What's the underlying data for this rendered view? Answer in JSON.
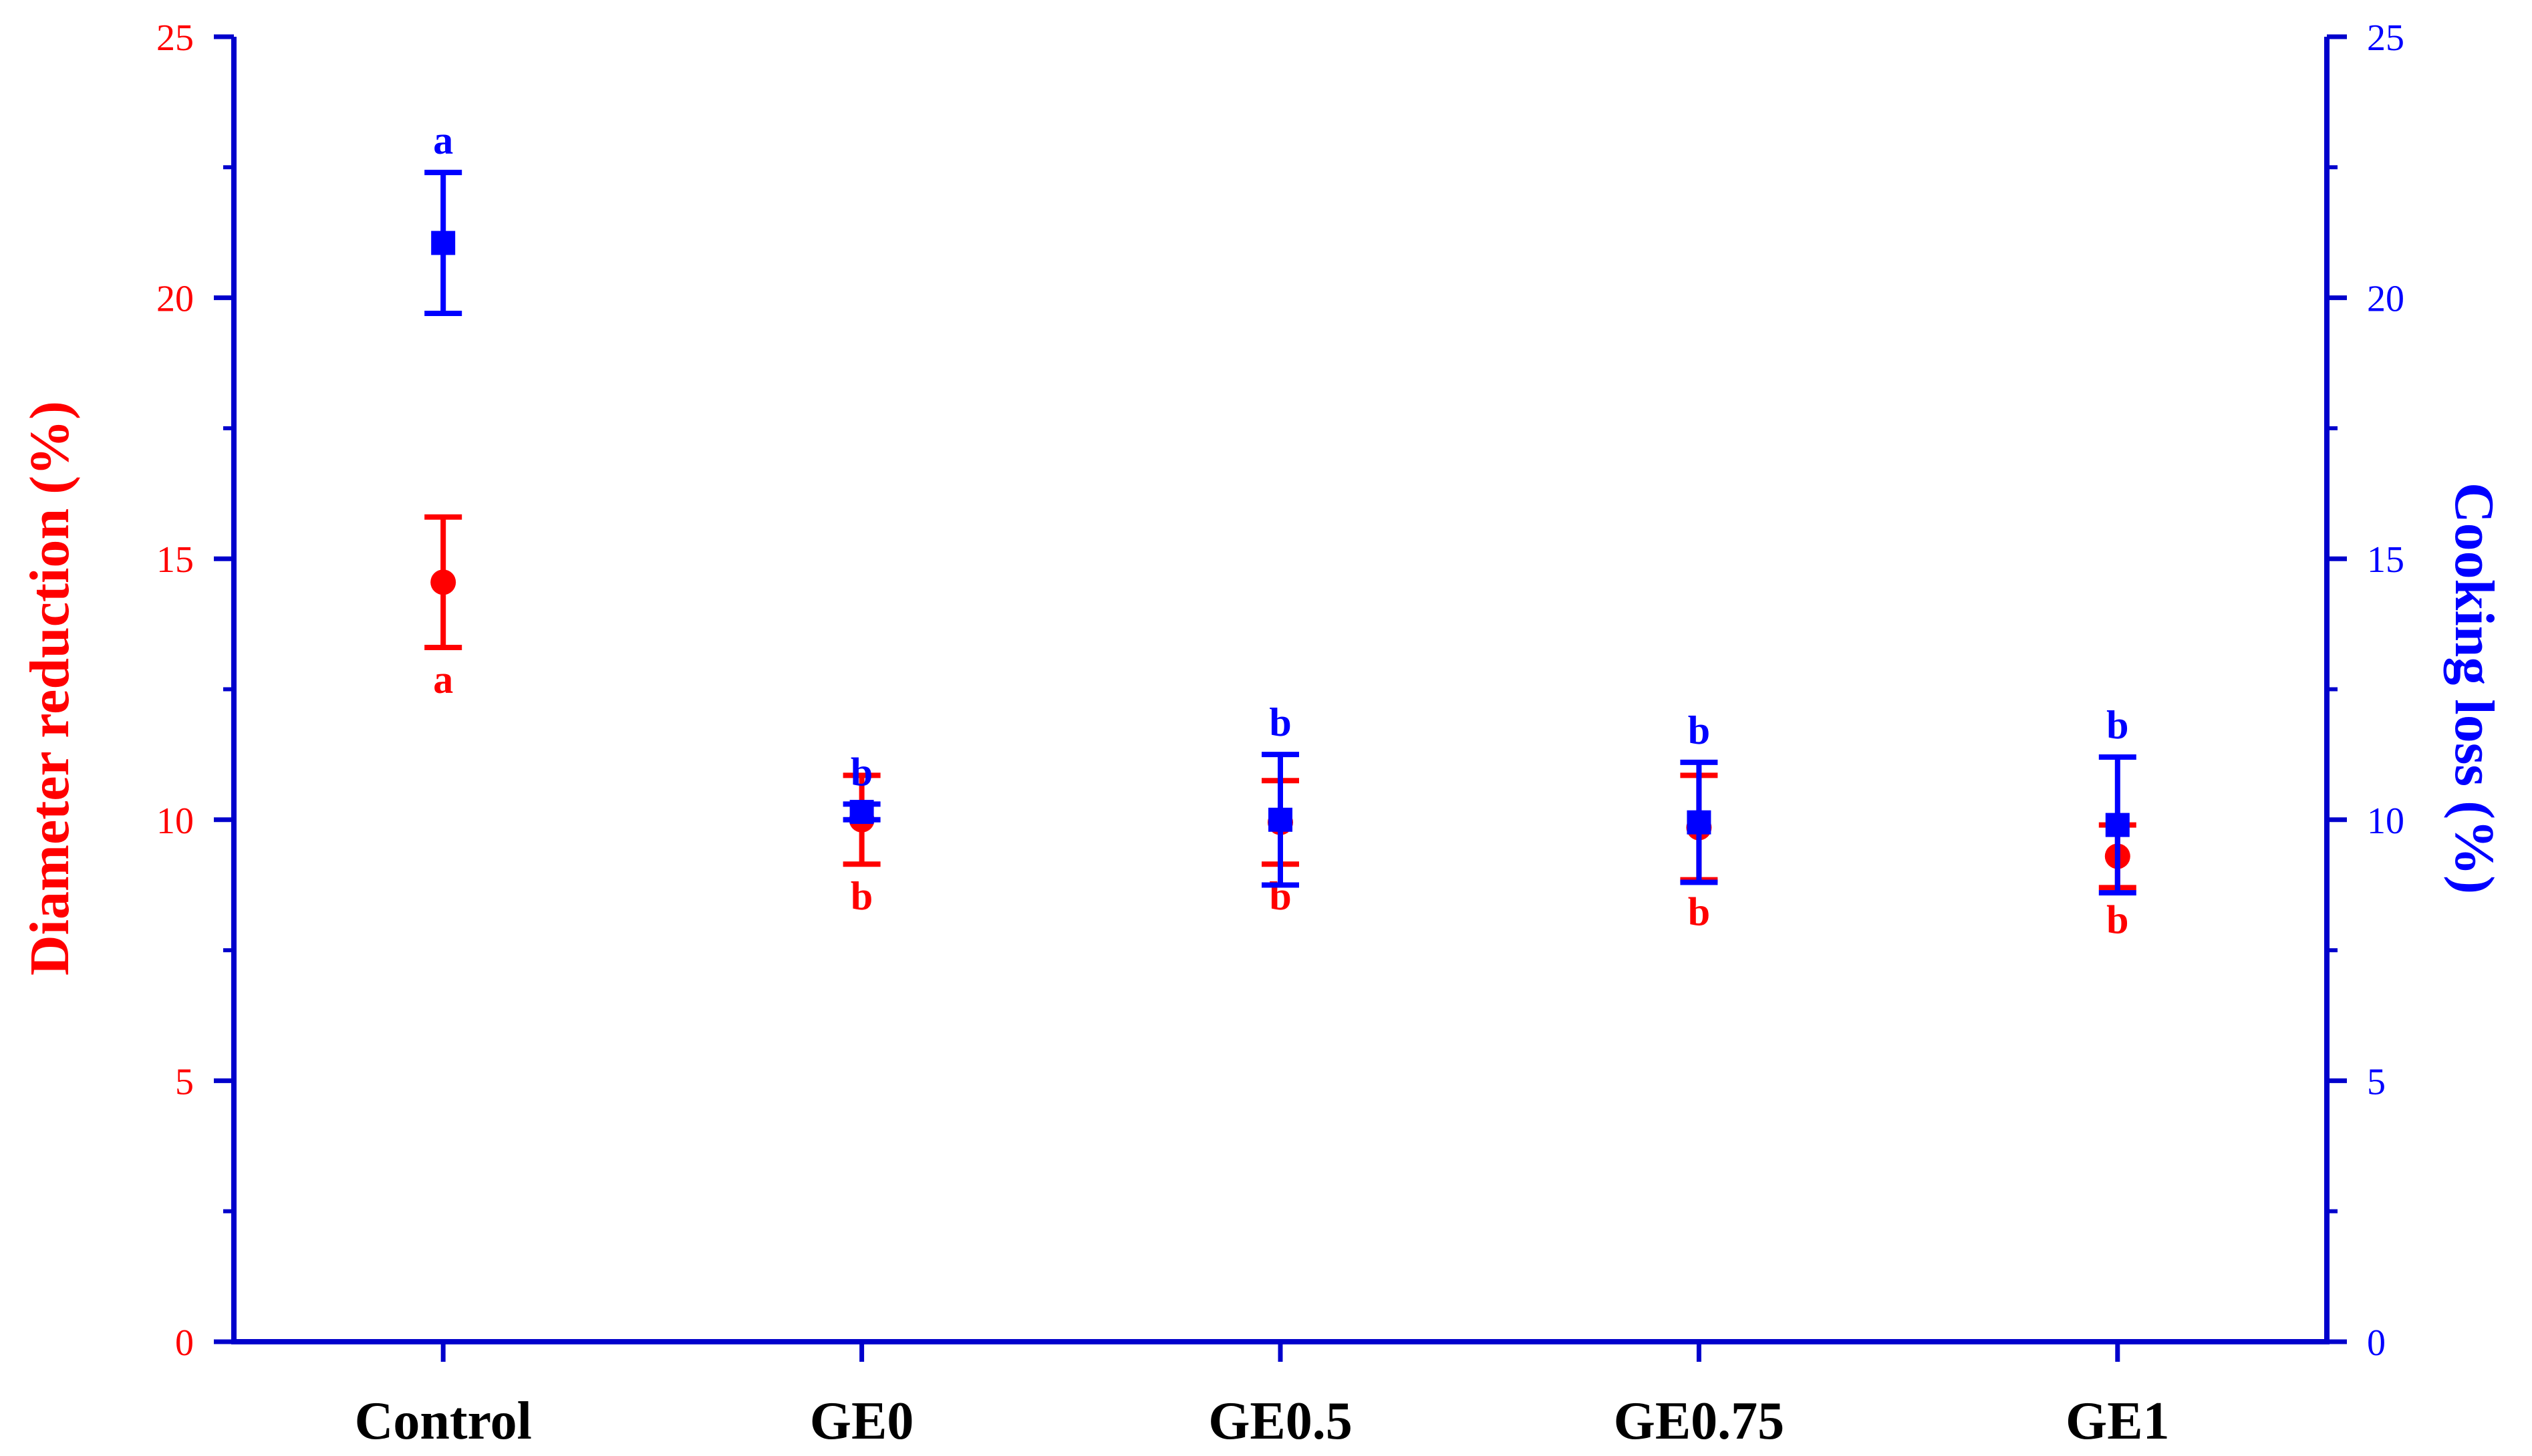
{
  "chart_data": {
    "type": "scatter",
    "categories": [
      "Control",
      "GE0",
      "GE0.5",
      "GE0.75",
      "GE1"
    ],
    "y_left": {
      "label": "Diameter reduction (%)",
      "range": [
        0,
        25
      ],
      "ticks": [
        "0",
        "5",
        "10",
        "15",
        "20",
        "25"
      ],
      "color": "#ff0000"
    },
    "y_right": {
      "label": "Cooking loss (%)",
      "range": [
        0,
        25
      ],
      "ticks": [
        "0",
        "5",
        "10",
        "15",
        "20",
        "25"
      ],
      "color": "#0000ff"
    },
    "axis_color": "#0000cc",
    "grid": false,
    "series": [
      {
        "axis": "left",
        "marker": "circle",
        "color": "#ff0000",
        "values": [
          14.55,
          10.0,
          9.95,
          9.85,
          9.3
        ],
        "errors": [
          1.25,
          0.85,
          0.8,
          1.0,
          0.6
        ],
        "labels": [
          "a",
          "b",
          "b",
          "b",
          "b"
        ]
      },
      {
        "axis": "right",
        "marker": "square",
        "color": "#0000ff",
        "values": [
          21.05,
          10.15,
          10.0,
          9.95,
          9.9
        ],
        "errors": [
          1.35,
          0.15,
          1.25,
          1.15,
          1.3
        ],
        "labels": [
          "a",
          "b",
          "b",
          "b",
          "b"
        ]
      }
    ]
  }
}
